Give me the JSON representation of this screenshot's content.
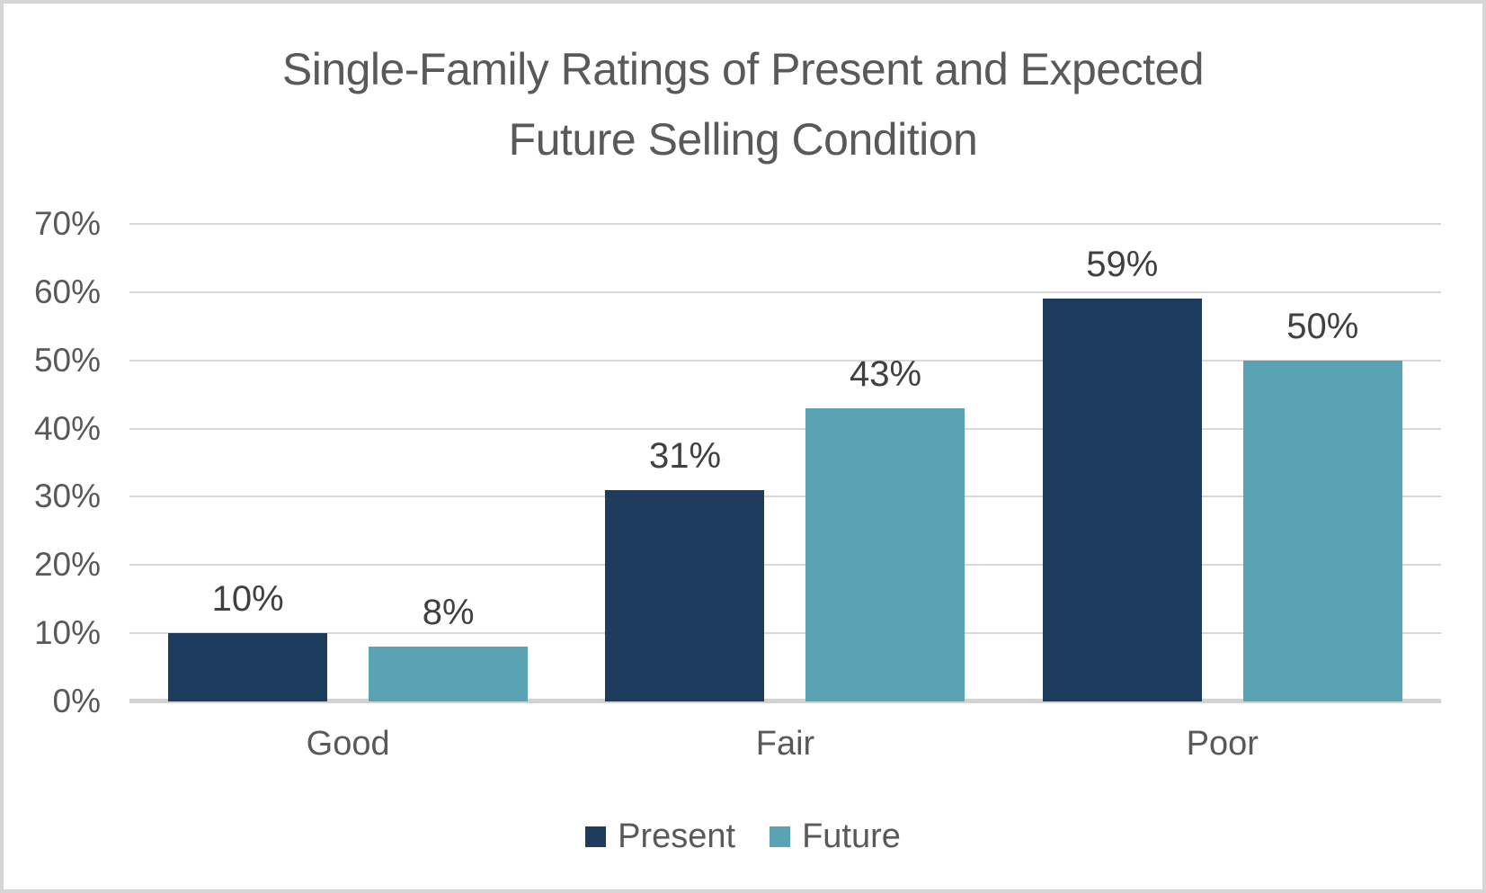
{
  "page": {
    "background": "#ffffff",
    "border_color": "#d6d6d6"
  },
  "chart_data": {
    "type": "bar",
    "title": "Single-Family Ratings of Present and Expected Future Selling Condition",
    "title_lines": [
      "Single-Family Ratings of Present and Expected",
      "Future Selling Condition"
    ],
    "categories": [
      "Good",
      "Fair",
      "Poor"
    ],
    "series": [
      {
        "name": "Present",
        "color": "#1d3c5e",
        "values": [
          10,
          31,
          59
        ],
        "value_labels": [
          "10%",
          "31%",
          "59%"
        ]
      },
      {
        "name": "Future",
        "color": "#5aa3b5",
        "values": [
          8,
          43,
          50
        ],
        "value_labels": [
          "8%",
          "43%",
          "50%"
        ]
      }
    ],
    "xlabel": "",
    "ylabel": "",
    "ylim": [
      0,
      70
    ],
    "yticks": [
      "70%",
      "60%",
      "50%",
      "40%",
      "30%",
      "20%",
      "10%",
      "0%"
    ],
    "grid": true,
    "legend_position": "bottom"
  },
  "colors": {
    "title_text": "#595959",
    "axis_text": "#595959",
    "value_label_text": "#404040",
    "gridline": "#d9d9d9",
    "axis_line": "#d2d2d2",
    "present": "#1d3c5e",
    "future": "#5aa3b5"
  }
}
